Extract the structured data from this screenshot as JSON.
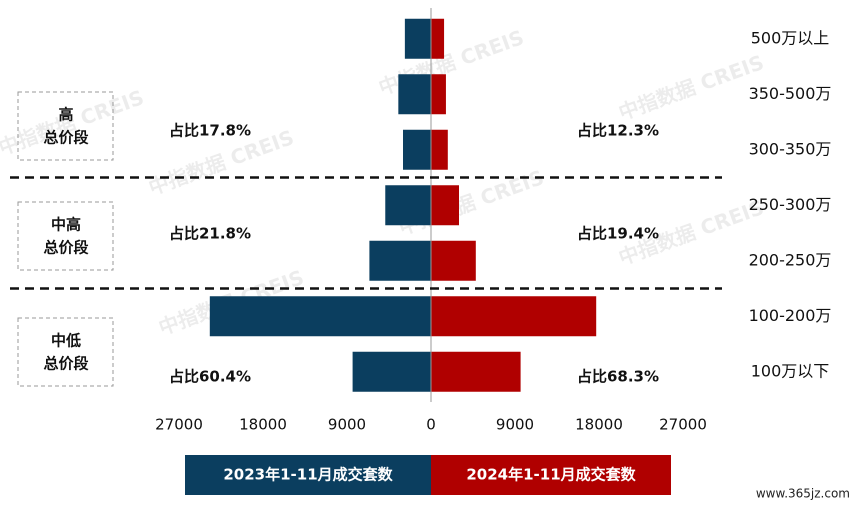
{
  "chart_data": {
    "type": "bar",
    "orientation": "butterfly",
    "categories": [
      "500万以上",
      "350-500万",
      "300-350万",
      "250-300万",
      "200-250万",
      "100-200万",
      "100万以下"
    ],
    "series": [
      {
        "name": "2023年1-11月成交套数",
        "color": "#0b3e5f",
        "side": "left",
        "values": [
          2800,
          3500,
          3000,
          4900,
          6600,
          23700,
          8400
        ]
      },
      {
        "name": "2024年1-11月成交套数",
        "color": "#b00000",
        "side": "right",
        "values": [
          1400,
          1600,
          1800,
          3000,
          4800,
          17700,
          9600
        ]
      }
    ],
    "xlim": [
      0,
      27000
    ],
    "xticks": [
      0,
      9000,
      18000,
      27000
    ],
    "groups": [
      {
        "label": [
          "高",
          "总价段"
        ],
        "left": "占比17.8%",
        "right": "占比12.3%"
      },
      {
        "label": [
          "中高",
          "总价段"
        ],
        "left": "占比21.8%",
        "right": "占比19.4%"
      },
      {
        "label": [
          "中低",
          "总价段"
        ],
        "left": "占比60.4%",
        "right": "占比68.3%"
      }
    ],
    "watermark": "中指数据 CREIS",
    "source": "www.365jz.com"
  }
}
